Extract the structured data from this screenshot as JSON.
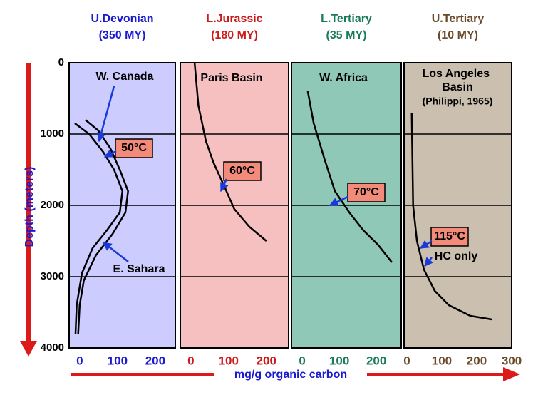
{
  "chart_data": [
    {
      "type": "line",
      "title": "U.Devonian",
      "subtitle": "(350 MY)",
      "title_color": "#1a1ad0",
      "background": "#ccccff",
      "ylabel": "Depth (meters)",
      "xlabel": "mg/g organic carbon",
      "xlim": [
        -28,
        253
      ],
      "xticks": [
        0,
        100,
        200
      ],
      "ylim": [
        0,
        4000
      ],
      "yticks": [
        0,
        1000,
        2000,
        3000,
        4000
      ],
      "grid": true,
      "series": [
        {
          "name": "W. Canada",
          "color": "#000000",
          "x": [
            -13,
            25,
            62,
            91,
            113,
            106,
            72,
            34,
            6,
            -8,
            -11
          ],
          "values": [
            850,
            1000,
            1250,
            1500,
            1800,
            2100,
            2350,
            2600,
            2950,
            3400,
            3800
          ]
        },
        {
          "name": "E. Sahara",
          "color": "#000000",
          "x": [
            15,
            49,
            81,
            106,
            128,
            121,
            87,
            43,
            11,
            0,
            -4
          ],
          "values": [
            800,
            950,
            1200,
            1500,
            1800,
            2100,
            2400,
            2700,
            3050,
            3400,
            3800
          ]
        }
      ],
      "annotations": [
        "50°C"
      ]
    },
    {
      "type": "line",
      "title": "L.Jurassic",
      "subtitle": "(180 MY)",
      "title_color": "#cc1a1a",
      "background": "#f5c0bf",
      "xlim": [
        -28,
        259
      ],
      "xticks": [
        0,
        100,
        200
      ],
      "ylim": [
        0,
        4000
      ],
      "grid": true,
      "series": [
        {
          "name": "Paris Basin",
          "color": "#000000",
          "x": [
            10,
            20,
            40,
            60,
            90,
            115,
            155,
            200
          ],
          "values": [
            0,
            600,
            1100,
            1400,
            1750,
            2050,
            2300,
            2500
          ]
        }
      ],
      "annotations": [
        "60°C"
      ]
    },
    {
      "type": "line",
      "title": "L.Tertiary",
      "subtitle": "(35 MY)",
      "title_color": "#1a7a5a",
      "background": "#90c8b8",
      "xlim": [
        -29,
        267
      ],
      "xticks": [
        0,
        100,
        200
      ],
      "ylim": [
        0,
        4000
      ],
      "grid": true,
      "series": [
        {
          "name": "W. Africa",
          "color": "#000000",
          "x": [
            15,
            31,
            60,
            88,
            127,
            165,
            204,
            242
          ],
          "values": [
            400,
            850,
            1350,
            1800,
            2100,
            2350,
            2550,
            2800
          ]
        }
      ],
      "annotations": [
        "70°C"
      ]
    },
    {
      "type": "line",
      "title": "U.Tertiary",
      "subtitle": "(10 MY)",
      "title_color": "#6b4a2a",
      "background": "#cbbfb0",
      "xlim": [
        -8,
        300
      ],
      "xticks": [
        0,
        100,
        200,
        300
      ],
      "ylim": [
        0,
        4000
      ],
      "grid": true,
      "series": [
        {
          "name": "Los Angeles Basin",
          "color": "#000000",
          "x": [
            14,
            18,
            29,
            49,
            80,
            120,
            182,
            243
          ],
          "values": [
            700,
            2000,
            2500,
            2900,
            3200,
            3400,
            3550,
            3600
          ]
        }
      ],
      "annotations": [
        "(Philippi, 1965)",
        "115°C",
        "HC only"
      ]
    }
  ]
}
